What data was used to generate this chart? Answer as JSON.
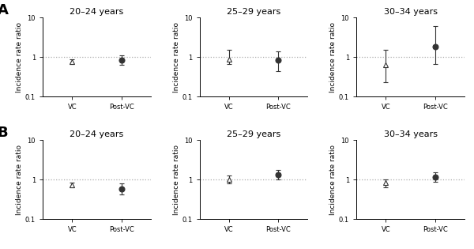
{
  "panels": [
    {
      "row": 0,
      "col": 0,
      "title": "20–24 years",
      "vc_val": 0.75,
      "vc_lo": 0.65,
      "vc_hi": 0.88,
      "postvc_val": 0.85,
      "postvc_lo": 0.63,
      "postvc_hi": 1.1
    },
    {
      "row": 0,
      "col": 1,
      "title": "25–29 years",
      "vc_val": 0.88,
      "vc_lo": 0.65,
      "vc_hi": 1.55,
      "postvc_val": 0.82,
      "postvc_lo": 0.43,
      "postvc_hi": 1.38
    },
    {
      "row": 0,
      "col": 2,
      "title": "30–34 years",
      "vc_val": 0.62,
      "vc_lo": 0.23,
      "vc_hi": 1.55,
      "postvc_val": 1.8,
      "postvc_lo": 0.65,
      "postvc_hi": 6.0
    },
    {
      "row": 1,
      "col": 0,
      "title": "20–24 years",
      "vc_val": 0.73,
      "vc_lo": 0.63,
      "vc_hi": 0.84,
      "postvc_val": 0.58,
      "postvc_lo": 0.42,
      "postvc_hi": 0.8
    },
    {
      "row": 1,
      "col": 1,
      "title": "25–29 years",
      "vc_val": 1.0,
      "vc_lo": 0.8,
      "vc_hi": 1.28,
      "postvc_val": 1.3,
      "postvc_lo": 1.02,
      "postvc_hi": 1.75
    },
    {
      "row": 1,
      "col": 2,
      "title": "30–34 years",
      "vc_val": 0.85,
      "vc_lo": 0.63,
      "vc_hi": 1.02,
      "postvc_val": 1.15,
      "postvc_lo": 0.88,
      "postvc_hi": 1.52
    }
  ],
  "row_labels": [
    "A",
    "B"
  ],
  "xlabels": [
    "VC",
    "Post-VC"
  ],
  "ylabel": "Incidence rate ratio",
  "ylim": [
    0.1,
    10
  ],
  "yticks": [
    0.1,
    1,
    10
  ],
  "ref_line": 1.0,
  "marker_vc": "^",
  "marker_postvc": "o",
  "marker_size": 5,
  "color": "#333333",
  "title_fontsize": 8,
  "label_fontsize": 6.5,
  "tick_fontsize": 6,
  "row_label_fontsize": 13,
  "capsize": 2.5,
  "elinewidth": 0.8
}
